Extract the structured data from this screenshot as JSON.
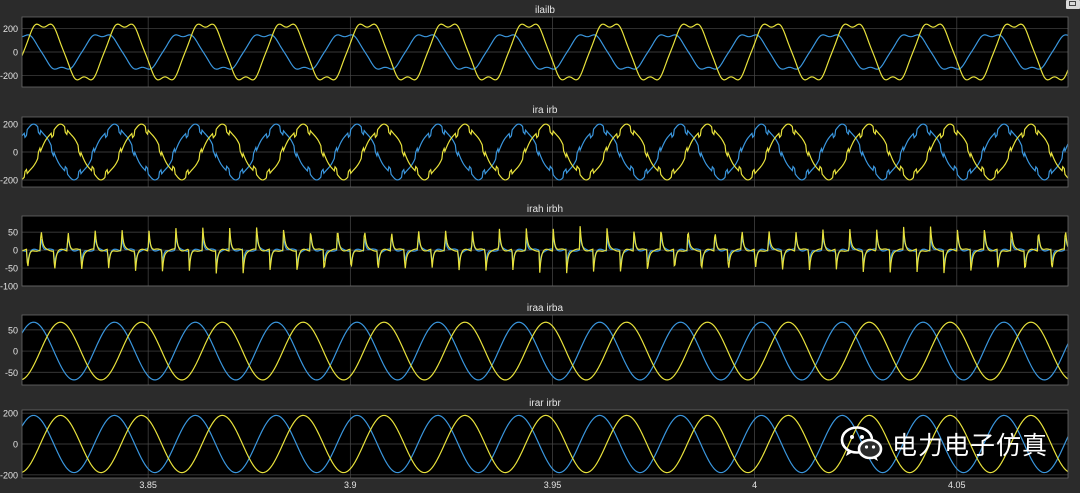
{
  "colors": {
    "background": "#2b2b2b",
    "plot_bg": "#000000",
    "grid": "#4a4a4a",
    "text": "#e6e6e6",
    "series_a": "#3a96dd",
    "series_b": "#e8e23c"
  },
  "watermark": {
    "text": "电力电子仿真",
    "icon": "wechat-icon"
  },
  "chart_data": [
    {
      "type": "line",
      "title": "ilailb",
      "xlim": [
        3.8188,
        4.0775
      ],
      "ylim": [
        -300,
        300
      ],
      "yticks": [
        200,
        0,
        -200
      ],
      "xticks": [
        3.85,
        3.9,
        3.95,
        4,
        4.05
      ],
      "grid": true,
      "series": [
        {
          "key": "a",
          "color": "#3a96dd",
          "waveform": "distorted-sine",
          "frequency_hz": 50,
          "amplitude": 160,
          "phase_deg": 115
        },
        {
          "key": "b",
          "color": "#e8e23c",
          "waveform": "distorted-sine",
          "frequency_hz": 50,
          "amplitude": 260,
          "phase_deg": 15
        }
      ]
    },
    {
      "type": "line",
      "title": "ira irb",
      "xlim": [
        3.8188,
        4.0775
      ],
      "ylim": [
        -250,
        250
      ],
      "yticks": [
        200,
        0,
        -200
      ],
      "xticks": [
        3.85,
        3.9,
        3.95,
        4,
        4.05
      ],
      "grid": true,
      "series": [
        {
          "key": "a",
          "color": "#3a96dd",
          "waveform": "notched-sine",
          "frequency_hz": 50,
          "amplitude": 190,
          "phase_deg": 60
        },
        {
          "key": "b",
          "color": "#e8e23c",
          "waveform": "notched-sine",
          "frequency_hz": 50,
          "amplitude": 190,
          "phase_deg": -60
        }
      ]
    },
    {
      "type": "line",
      "title": "irah irbh",
      "xlim": [
        3.8188,
        4.0775
      ],
      "ylim": [
        -100,
        95
      ],
      "yticks": [
        50,
        0,
        -50,
        -100
      ],
      "xticks": [
        3.85,
        3.9,
        3.95,
        4,
        4.05
      ],
      "grid": true,
      "series": [
        {
          "key": "a",
          "color": "#3a96dd",
          "waveform": "harmonic-spikes",
          "frequency_hz": 50,
          "amplitude": 45,
          "phase_deg": 60
        },
        {
          "key": "b",
          "color": "#e8e23c",
          "waveform": "harmonic-spikes",
          "frequency_hz": 50,
          "amplitude": 65,
          "phase_deg": -60
        }
      ]
    },
    {
      "type": "line",
      "title": "iraa irba",
      "xlim": [
        3.8188,
        4.0775
      ],
      "ylim": [
        -80,
        85
      ],
      "yticks": [
        50,
        0,
        -50
      ],
      "xticks": [
        3.85,
        3.9,
        3.95,
        4,
        4.05
      ],
      "grid": true,
      "series": [
        {
          "key": "a",
          "color": "#3a96dd",
          "waveform": "sine",
          "frequency_hz": 50,
          "amplitude": 68,
          "phase_deg": 60
        },
        {
          "key": "b",
          "color": "#e8e23c",
          "waveform": "sine",
          "frequency_hz": 50,
          "amplitude": 68,
          "phase_deg": -60
        }
      ]
    },
    {
      "type": "line",
      "title": "irar irbr",
      "xlim": [
        3.8188,
        4.0775
      ],
      "ylim": [
        -220,
        220
      ],
      "yticks": [
        200,
        0,
        -200
      ],
      "xticks": [
        3.85,
        3.9,
        3.95,
        4,
        4.05
      ],
      "grid": true,
      "series": [
        {
          "key": "a",
          "color": "#3a96dd",
          "waveform": "sine",
          "frequency_hz": 50,
          "amplitude": 185,
          "phase_deg": 60
        },
        {
          "key": "b",
          "color": "#e8e23c",
          "waveform": "sine",
          "frequency_hz": 50,
          "amplitude": 185,
          "phase_deg": -60
        }
      ]
    }
  ]
}
